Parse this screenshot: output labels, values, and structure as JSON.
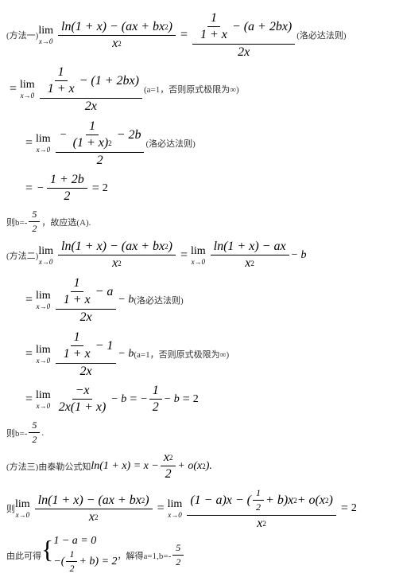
{
  "lim_label": "lim",
  "lim_sub": "x→0",
  "method1_label": "(方法一)",
  "note_lhopital": " (洛必达法则)",
  "note_a1": " (a=1，否则原式极限为∞)",
  "m1l1_num1": "ln(1 + x) − (ax + bx",
  "m1l1_sq": "2",
  "m1l1_num1_end": ")",
  "m1l1_den1": "x",
  "m1l1_rhs_top_frac_num": "1",
  "m1l1_rhs_top_frac_den": "1 + x",
  "m1l1_rhs_top_rest": " − (a + 2bx)",
  "m1l1_rhs_bot": "2x",
  "m1l2_top_rest": " − (1 + 2bx)",
  "m1l2_bot": "2x",
  "m1l3_top_frac_num": "1",
  "m1l3_top_frac_den": "(1 + x)",
  "m1l3_top_rest": " − 2b",
  "m1l3_bot": "2",
  "m1l4_num": "1 + 2b",
  "m1l4_den": "2",
  "m1l4_val": "2",
  "m1_conc_a": "则b=-",
  "m1_conc_num": "5",
  "m1_conc_den": "2",
  "m1_conc_b": "，故应选(A).",
  "method2_label": "(方法二)",
  "m2l1_rhs_num": "ln(1 + x) − ax",
  "m2l1_rhs_den": "x",
  "m2l1_tail": " − b",
  "m2l2_top_rest": " − a",
  "m2l2_bot": "2x",
  "m2l3_top_rest": " − 1",
  "m2l3_bot": "2x",
  "m2l4_num": "−x",
  "m2l4_den": "2x(1 + x)",
  "m2l4_rhs": "− ",
  "m2l4_half_num": "1",
  "m2l4_half_den": "2",
  "m2l4_tail2": " − b",
  "m2l4_val": "2",
  "m2_conc_a": "则b=-",
  "m2_conc_num": "5",
  "m2_conc_den": "2",
  "m2_conc_b": ".",
  "method3_label": "(方法三)由泰勒公式知",
  "m3l1_a": "ln(1 + x) = x − ",
  "m3l1_frac_num": "x",
  "m3l1_frac_den": "2",
  "m3l1_b": " + o(x",
  "m3l1_c": ").",
  "m3_then": "则",
  "m3l2_rhs_num_a": "(1 − a)x − (",
  "m3l2_rhs_num_frac_num": "1",
  "m3l2_rhs_num_frac_den": "2",
  "m3l2_rhs_num_b": " + b)x",
  "m3l2_rhs_num_c": " + o(x",
  "m3l2_rhs_num_d": ")",
  "m3l2_rhs_den": "x",
  "m3l2_val": "2",
  "m3_conc_label": "由此可得",
  "m3_brace_top": "1 − a = 0",
  "m3_brace_bot_a": "−(",
  "m3_brace_bot_num": "1",
  "m3_brace_bot_den": "2",
  "m3_brace_bot_b": " + b) = 2",
  "m3_conc_tail_a": "，解得a=1,b=-",
  "m3_conc_tail_num": "5",
  "m3_conc_tail_den": "2"
}
